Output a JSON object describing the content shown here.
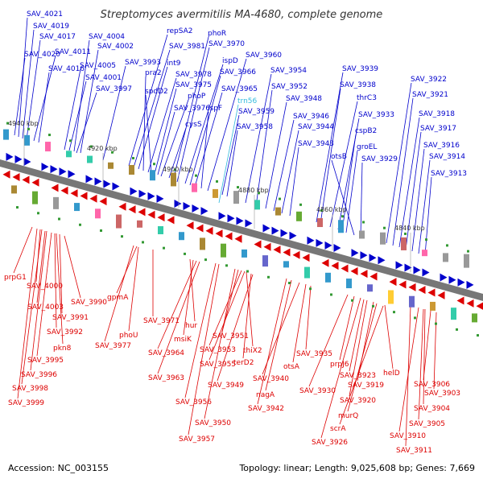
{
  "title": "Streptomyces avermitilis MA-4680, complete genome",
  "accession": "Accession: NC_003155",
  "summary": "Topology: linear; Length: 9,025,608 bp; Genes: 7,669",
  "colors": {
    "forward": "#0000cc",
    "reverse": "#dd0000",
    "rna": "#33bbdd",
    "axis": "#777777"
  },
  "kbp_ticks": [
    "4940 kbp",
    "4920 kbp",
    "4900 kbp",
    "4880 kbp",
    "4860 kbp",
    "4840 kbp"
  ],
  "forward_genes": [
    "SAV_4021",
    "SAV_4019",
    "SAV_4017",
    "SAV_4020",
    "SAV_4011",
    "SAV_4016",
    "SAV_4004",
    "SAV_4002",
    "SAV_4005",
    "SAV_4001",
    "SAV_3997",
    "SAV_3993",
    "repSA2",
    "SAV_3981",
    "int9",
    "pra2",
    "SAV_3978",
    "spdD2",
    "SAV_3975",
    "SAV_3976",
    "phoP",
    "cysS",
    "phoR",
    "SAV_3970",
    "ispD",
    "SAV_3966",
    "SAV_3965",
    "ispF",
    "SAV_3960",
    "trn56",
    "SAV_3959",
    "SAV_3958",
    "SAV_3954",
    "SAV_3952",
    "SAV_3948",
    "SAV_3946",
    "SAV_3944",
    "SAV_3943",
    "SAV_3939",
    "SAV_3938",
    "thrC3",
    "SAV_3933",
    "cspB2",
    "groEL",
    "otsB",
    "SAV_3929",
    "SAV_3922",
    "SAV_3921",
    "SAV_3918",
    "SAV_3917",
    "SAV_3916",
    "SAV_3914",
    "SAV_3913"
  ],
  "reverse_genes": [
    "prpG1",
    "SAV_4000",
    "SAV_4003",
    "SAV_3990",
    "SAV_3991",
    "SAV_3992",
    "pkn8",
    "SAV_3995",
    "SAV_3996",
    "SAV_3998",
    "SAV_3999",
    "gpmA",
    "phoU",
    "SAV_3971",
    "SAV_3977",
    "hur",
    "msiK",
    "SAV_3964",
    "SAV_3963",
    "SAV_3951",
    "SAV_3953",
    "thiX2",
    "SAV_3955",
    "terD2",
    "SAV_3949",
    "SAV_3956",
    "SAV_3950",
    "SAV_3957",
    "SAV_3935",
    "otsA",
    "SAV_3940",
    "nagA",
    "SAV_3942",
    "prpJ6",
    "SAV_3930",
    "SAV_3923",
    "helD",
    "SAV_3919",
    "SAV_3920",
    "murQ",
    "scrA",
    "SAV_3926",
    "SAV_3906",
    "SAV_3903",
    "SAV_3904",
    "SAV_3905",
    "SAV_3910",
    "SAV_3911"
  ]
}
